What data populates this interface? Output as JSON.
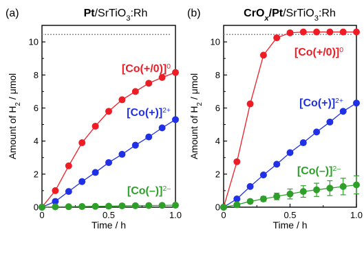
{
  "colors": {
    "red": "#ee1c25",
    "blue": "#1f30e6",
    "green": "#2ea02a",
    "axis": "#000000",
    "ref_line": "#8c8c8c"
  },
  "chart_data": [
    {
      "type": "line",
      "panel_label": "(a)",
      "title_parts": [
        {
          "text": "Pt",
          "bold": true
        },
        {
          "text": "/SrTiO",
          "bold": false
        },
        {
          "text": "3",
          "bold": false,
          "sub": true
        },
        {
          "text": ":Rh",
          "bold": false
        }
      ],
      "xlabel": "Time / h",
      "ylabel_parts": [
        {
          "text": "Amount of H"
        },
        {
          "text": "2",
          "sub": true
        },
        {
          "text": " / μmol"
        }
      ],
      "xlim": [
        0,
        1.0
      ],
      "ylim": [
        0,
        11
      ],
      "xticks": [
        0,
        0.5,
        1.0
      ],
      "xtick_labels": [
        "0",
        "0.5",
        "1.0"
      ],
      "yticks": [
        0,
        2,
        4,
        6,
        8,
        10
      ],
      "ytick_labels": [
        "0",
        "2",
        "4",
        "6",
        "8",
        "10"
      ],
      "ref_line_y": 10.45,
      "series": [
        {
          "name": "[Co(+/0)]0",
          "label_main": "[Co(+/0)]",
          "label_sup": "0",
          "color_key": "red",
          "x": [
            0,
            0.1,
            0.2,
            0.3,
            0.4,
            0.5,
            0.6,
            0.7,
            0.8,
            0.9,
            1.0
          ],
          "y": [
            0,
            1.0,
            2.5,
            3.9,
            4.9,
            5.8,
            6.5,
            7.0,
            7.5,
            7.85,
            8.15
          ]
        },
        {
          "name": "[Co(+)]2+",
          "label_main": "[Co(+)]",
          "label_sup": "2+",
          "color_key": "blue",
          "x": [
            0,
            0.1,
            0.2,
            0.3,
            0.4,
            0.5,
            0.6,
            0.7,
            0.8,
            0.9,
            1.0
          ],
          "y": [
            0,
            0.35,
            0.95,
            1.55,
            2.1,
            2.7,
            3.2,
            3.75,
            4.25,
            4.8,
            5.3
          ]
        },
        {
          "name": "[Co(–)]2–",
          "label_main": "[Co(–)]",
          "label_sup": "2–",
          "color_key": "green",
          "x": [
            0,
            0.1,
            0.2,
            0.3,
            0.4,
            0.5,
            0.6,
            0.7,
            0.8,
            0.9,
            1.0
          ],
          "y": [
            0,
            0.02,
            0.03,
            0.04,
            0.05,
            0.06,
            0.08,
            0.09,
            0.1,
            0.11,
            0.12
          ]
        }
      ]
    },
    {
      "type": "line",
      "panel_label": "(b)",
      "title_parts": [
        {
          "text": "CrO",
          "bold": true
        },
        {
          "text": "x",
          "bold": true,
          "italic": true,
          "sub": true
        },
        {
          "text": "/Pt",
          "bold": true
        },
        {
          "text": "/SrTiO",
          "bold": false
        },
        {
          "text": "3",
          "bold": false,
          "sub": true
        },
        {
          "text": ":Rh",
          "bold": false
        }
      ],
      "xlabel": "Time / h",
      "ylabel_parts": [
        {
          "text": "Amount of H"
        },
        {
          "text": "2",
          "sub": true
        },
        {
          "text": " / μmol"
        }
      ],
      "xlim": [
        0,
        1.0
      ],
      "ylim": [
        0,
        11
      ],
      "xticks": [
        0,
        0.5,
        1.0
      ],
      "xtick_labels": [
        "0",
        "0.5",
        "1.0"
      ],
      "yticks": [
        0,
        2,
        4,
        6,
        8,
        10
      ],
      "ytick_labels": [
        "0",
        "2",
        "4",
        "6",
        "8",
        "10"
      ],
      "ref_line_y": 10.45,
      "series": [
        {
          "name": "[Co(+/0)]0",
          "label_main": "[Co(+/0)]",
          "label_sup": "0",
          "color_key": "red",
          "x": [
            0,
            0.1,
            0.2,
            0.3,
            0.4,
            0.5,
            0.6,
            0.7,
            0.8,
            0.9,
            1.0
          ],
          "y": [
            0,
            2.75,
            6.25,
            9.2,
            10.25,
            10.55,
            10.6,
            10.6,
            10.6,
            10.6,
            10.6
          ]
        },
        {
          "name": "[Co(+)]2+",
          "label_main": "[Co(+)]",
          "label_sup": "2+",
          "color_key": "blue",
          "x": [
            0,
            0.1,
            0.2,
            0.3,
            0.4,
            0.5,
            0.6,
            0.7,
            0.8,
            0.9,
            1.0
          ],
          "y": [
            0,
            0.5,
            1.25,
            1.95,
            2.6,
            3.3,
            3.9,
            4.55,
            5.15,
            5.8,
            6.3
          ]
        },
        {
          "name": "[Co(–)]2–",
          "label_main": "[Co(–)]",
          "label_sup": "2–",
          "color_key": "green",
          "x": [
            0,
            0.1,
            0.2,
            0.3,
            0.4,
            0.5,
            0.6,
            0.7,
            0.8,
            0.9,
            1.0
          ],
          "y": [
            0,
            0.15,
            0.35,
            0.5,
            0.65,
            0.8,
            0.95,
            1.05,
            1.15,
            1.25,
            1.35
          ],
          "err": [
            0,
            0.05,
            0.1,
            0.15,
            0.2,
            0.3,
            0.35,
            0.4,
            0.45,
            0.5,
            0.55
          ]
        }
      ]
    }
  ]
}
